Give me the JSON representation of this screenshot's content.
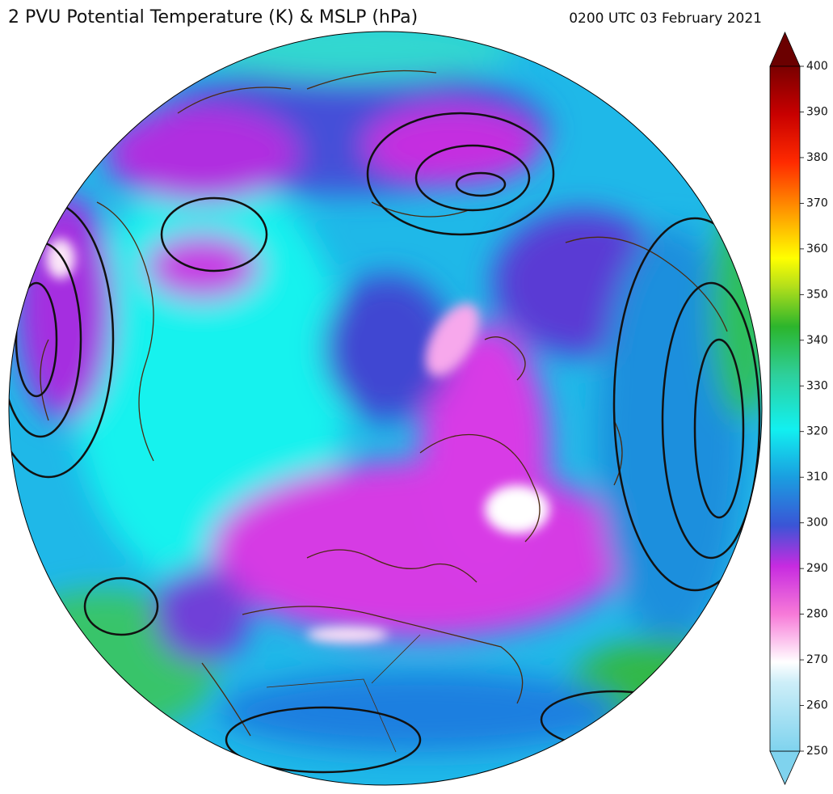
{
  "title": "2 PVU Potential Temperature (K) & MSLP (hPa)",
  "timestamp": "0200 UTC 03 February 2021",
  "colorbar": {
    "range": [
      250,
      400
    ],
    "ticks": [
      250,
      260,
      270,
      280,
      290,
      300,
      310,
      320,
      330,
      340,
      350,
      360,
      370,
      380,
      390,
      400
    ]
  }
}
